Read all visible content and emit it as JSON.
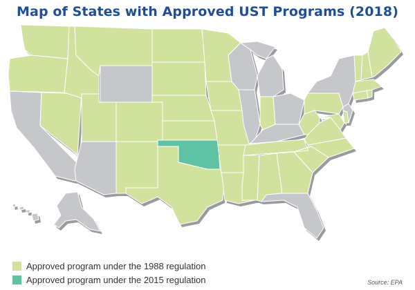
{
  "title": "Map of States with Approved UST Programs (2018)",
  "source": "Source: EPA",
  "colors": {
    "title": "#1f4e96",
    "approved_1988": "#d1e29e",
    "approved_2015": "#5fc3a3",
    "not_approved": "#c6c7cb",
    "shadow": "#9a9b9f"
  },
  "legend": [
    {
      "label": "Approved program under the 1988 regulation",
      "status": "approved_1988"
    },
    {
      "label": "Approved program under the 2015 regulation",
      "status": "approved_2015"
    }
  ],
  "states": {
    "WA": "approved_1988",
    "OR": "approved_1988",
    "CA": "not_approved",
    "NV": "approved_1988",
    "ID": "approved_1988",
    "MT": "approved_1988",
    "WY": "not_approved",
    "UT": "approved_1988",
    "AZ": "not_approved",
    "CO": "approved_1988",
    "NM": "approved_1988",
    "ND": "approved_1988",
    "SD": "approved_1988",
    "NE": "approved_1988",
    "KS": "approved_1988",
    "OK": "approved_2015",
    "TX": "approved_1988",
    "MN": "approved_1988",
    "IA": "approved_1988",
    "MO": "approved_1988",
    "AR": "approved_1988",
    "LA": "approved_1988",
    "WI": "not_approved",
    "IL": "not_approved",
    "MI": "not_approved",
    "IN": "approved_1988",
    "OH": "not_approved",
    "KY": "not_approved",
    "TN": "approved_1988",
    "MS": "approved_1988",
    "AL": "approved_1988",
    "GA": "approved_1988",
    "FL": "not_approved",
    "SC": "approved_1988",
    "NC": "approved_1988",
    "VA": "approved_1988",
    "WV": "approved_1988",
    "PA": "approved_1988",
    "NY": "not_approved",
    "MD": "approved_1988",
    "DE": "approved_1988",
    "NJ": "not_approved",
    "CT": "approved_1988",
    "RI": "approved_1988",
    "MA": "approved_1988",
    "VT": "approved_1988",
    "NH": "approved_1988",
    "ME": "approved_1988",
    "AK": "not_approved",
    "HI": "not_approved"
  }
}
